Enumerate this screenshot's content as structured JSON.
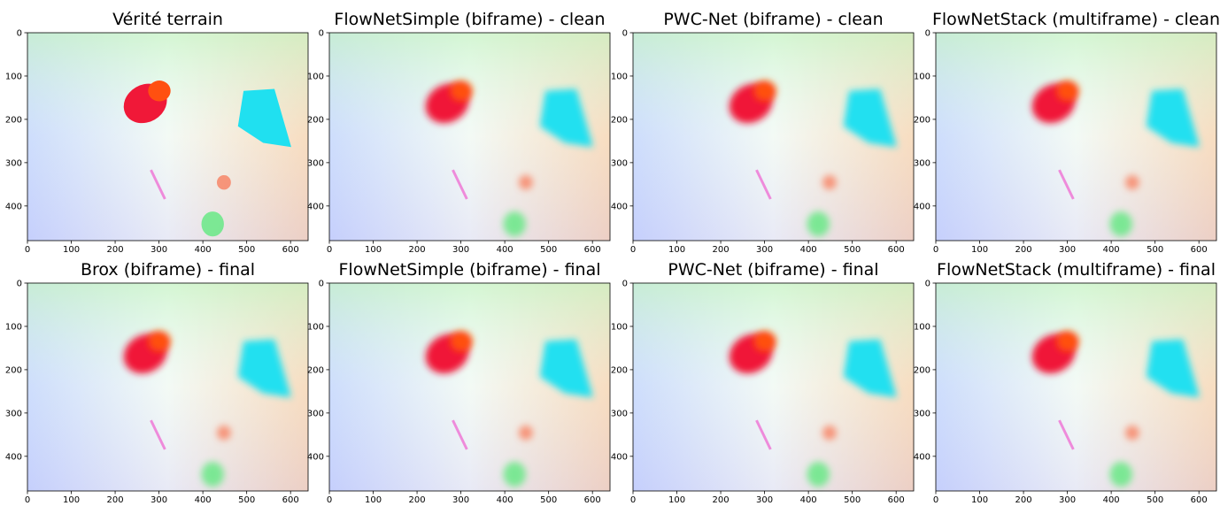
{
  "panels": [
    {
      "title": "Vérité terrain",
      "xlim": [
        0,
        640
      ],
      "ylim": [
        480,
        0
      ],
      "xticks": [
        0,
        100,
        200,
        300,
        400,
        500,
        600
      ],
      "yticks": [
        0,
        100,
        200,
        300,
        400
      ]
    },
    {
      "title": "FlowNetSimple (biframe) - clean",
      "xlim": [
        0,
        640
      ],
      "ylim": [
        480,
        0
      ],
      "xticks": [
        0,
        100,
        200,
        300,
        400,
        500,
        600
      ],
      "yticks": [
        0,
        100,
        200,
        300,
        400
      ]
    },
    {
      "title": "PWC-Net (biframe) - clean",
      "xlim": [
        0,
        640
      ],
      "ylim": [
        480,
        0
      ],
      "xticks": [
        0,
        100,
        200,
        300,
        400,
        500,
        600
      ],
      "yticks": [
        0,
        100,
        200,
        300,
        400
      ]
    },
    {
      "title": "FlowNetStack (multiframe) - clean",
      "xlim": [
        0,
        640
      ],
      "ylim": [
        480,
        0
      ],
      "xticks": [
        0,
        100,
        200,
        300,
        400,
        500,
        600
      ],
      "yticks": [
        0,
        100,
        200,
        300,
        400
      ]
    },
    {
      "title": "Brox (biframe) - final",
      "xlim": [
        0,
        640
      ],
      "ylim": [
        480,
        0
      ],
      "xticks": [
        0,
        100,
        200,
        300,
        400,
        500,
        600
      ],
      "yticks": [
        0,
        100,
        200,
        300,
        400
      ]
    },
    {
      "title": "FlowNetSimple (biframe) - final",
      "xlim": [
        0,
        640
      ],
      "ylim": [
        480,
        0
      ],
      "xticks": [
        0,
        100,
        200,
        300,
        400,
        500,
        600
      ],
      "yticks": [
        0,
        100,
        200,
        300,
        400
      ]
    },
    {
      "title": "PWC-Net (biframe) - final",
      "xlim": [
        0,
        640
      ],
      "ylim": [
        480,
        0
      ],
      "xticks": [
        0,
        100,
        200,
        300,
        400,
        500,
        600
      ],
      "yticks": [
        0,
        100,
        200,
        300,
        400
      ]
    },
    {
      "title": "FlowNetStack (multiframe) - final",
      "xlim": [
        0,
        640
      ],
      "ylim": [
        480,
        0
      ],
      "xticks": [
        0,
        100,
        200,
        300,
        400,
        500,
        600
      ],
      "yticks": [
        0,
        100,
        200,
        300,
        400
      ]
    }
  ]
}
